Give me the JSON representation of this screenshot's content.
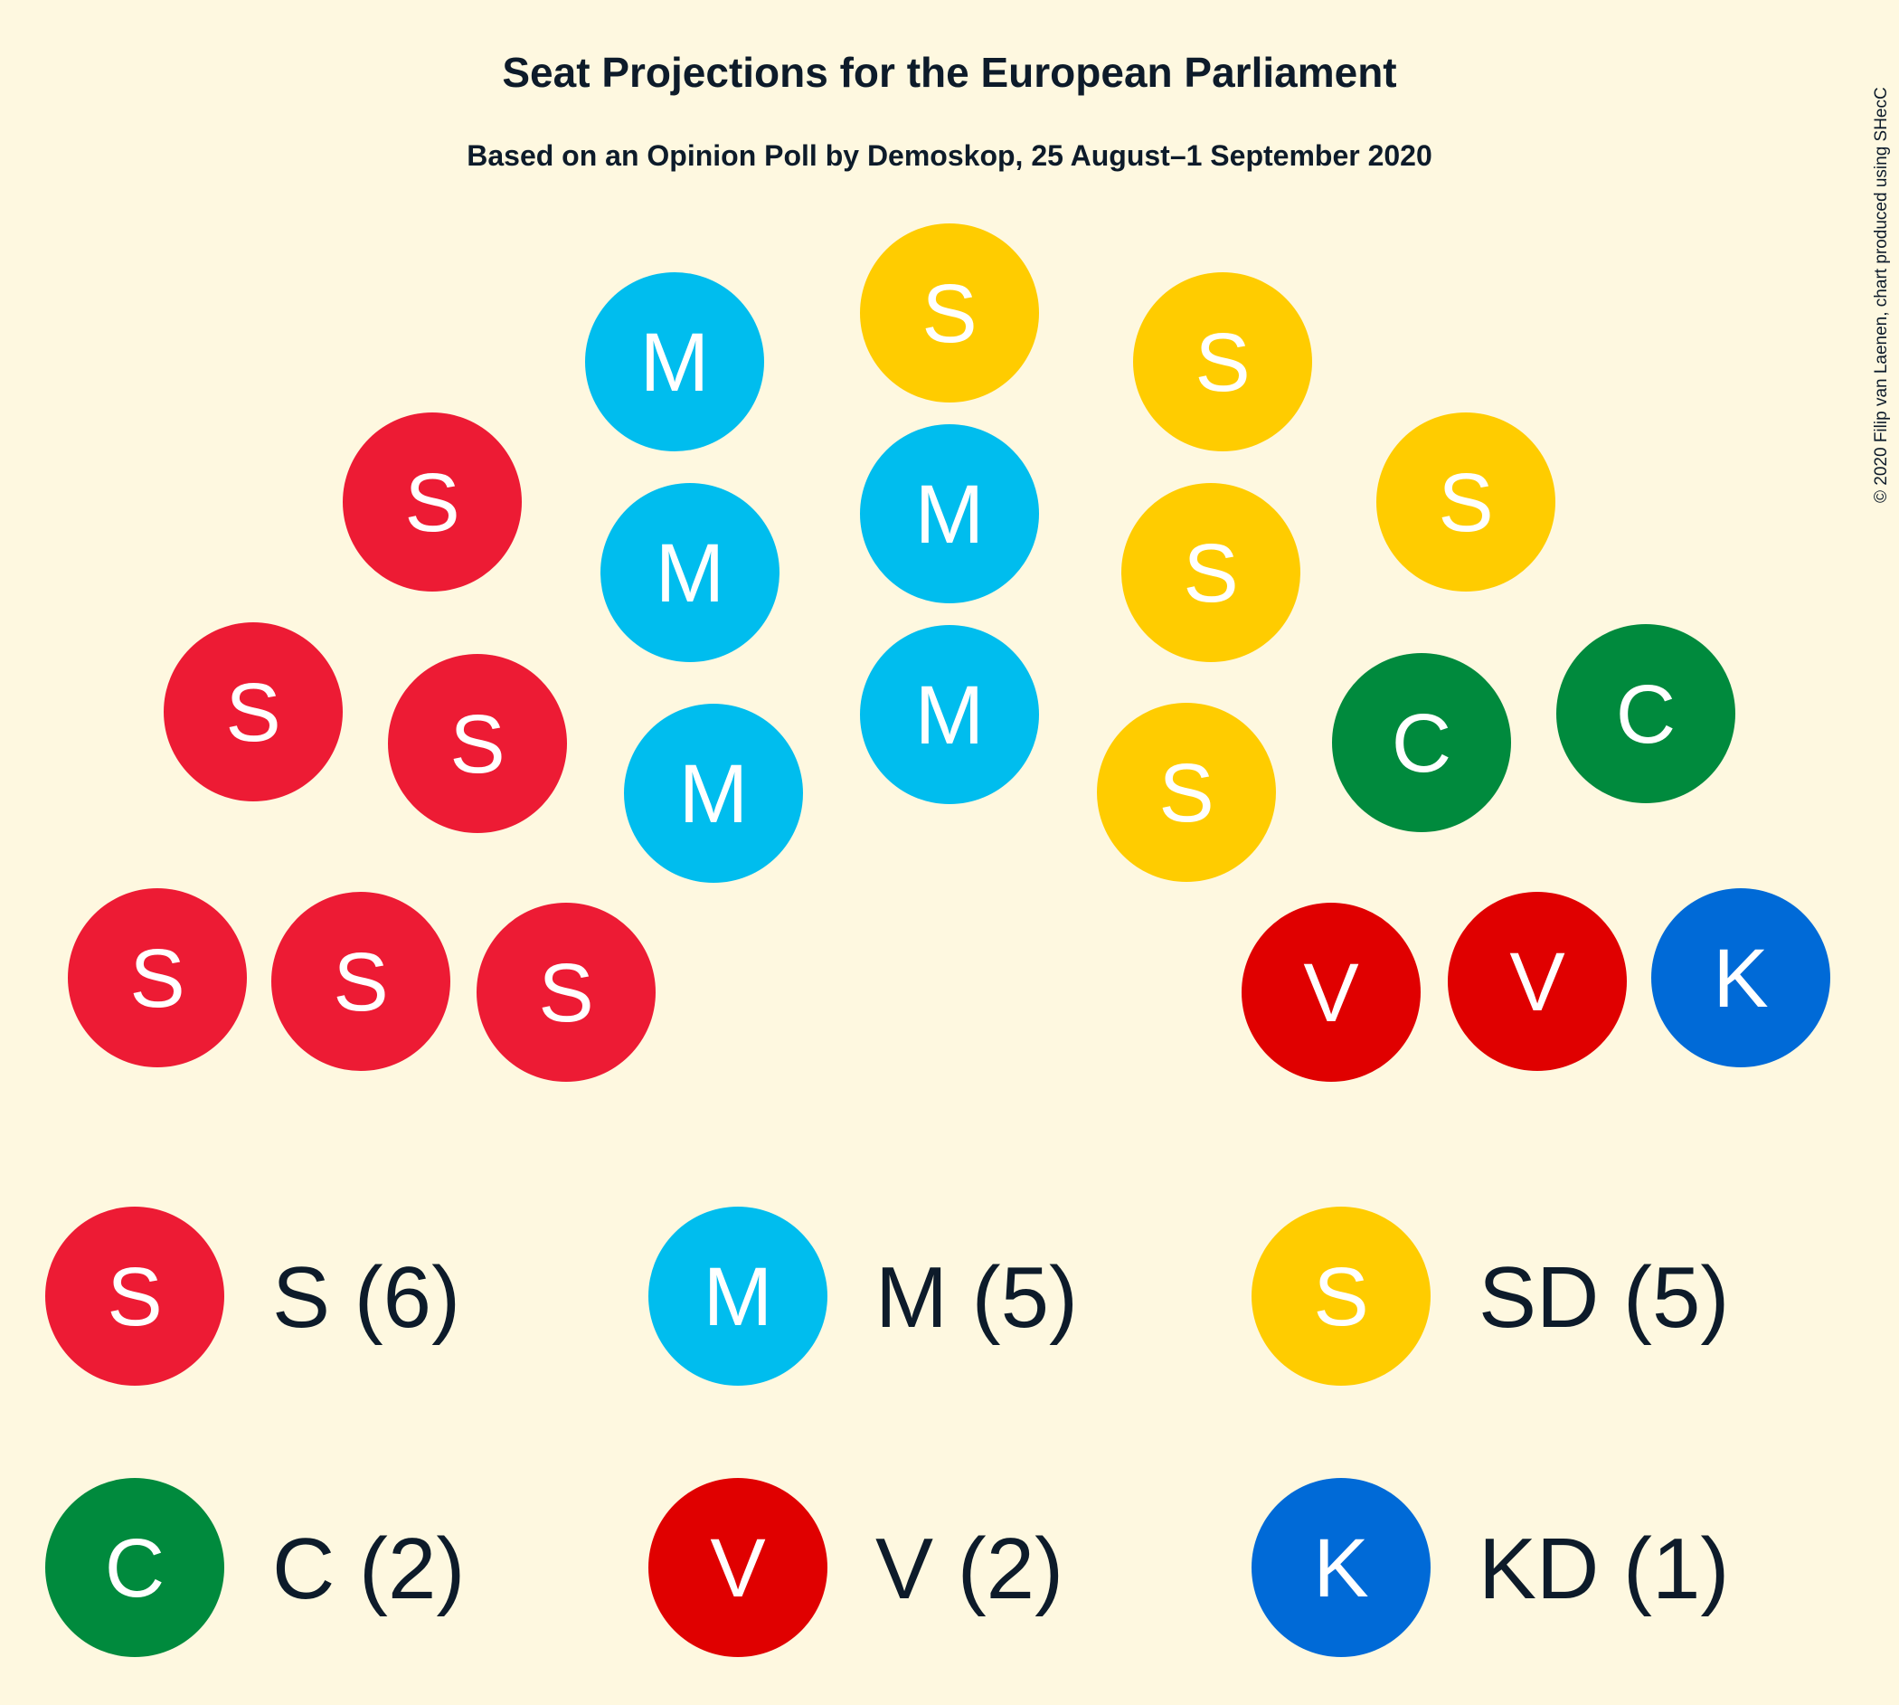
{
  "chart_data": {
    "type": "parliament",
    "title": "Seat Projections for the European Parliament",
    "subtitle": "Based on an Opinion Poll by Demoskop, 25 August–1 September 2020",
    "total_seats": 21,
    "parties": [
      {
        "name": "S",
        "seats": 6,
        "letter": "S",
        "label": "S (6)",
        "color": "#ed1b34"
      },
      {
        "name": "M",
        "seats": 5,
        "letter": "M",
        "label": "M (5)",
        "color": "#00bdee"
      },
      {
        "name": "SD",
        "seats": 5,
        "letter": "S",
        "label": "SD (5)",
        "color": "#ffcc00"
      },
      {
        "name": "C",
        "seats": 2,
        "letter": "C",
        "label": "C (2)",
        "color": "#008a3d"
      },
      {
        "name": "V",
        "seats": 2,
        "letter": "V",
        "label": "V (2)",
        "color": "#e00000"
      },
      {
        "name": "KD",
        "seats": 1,
        "letter": "K",
        "label": "KD (1)",
        "color": "#006ad7"
      }
    ]
  },
  "credit": "© 2020 Filip van Laenen, chart produced using SHecC"
}
